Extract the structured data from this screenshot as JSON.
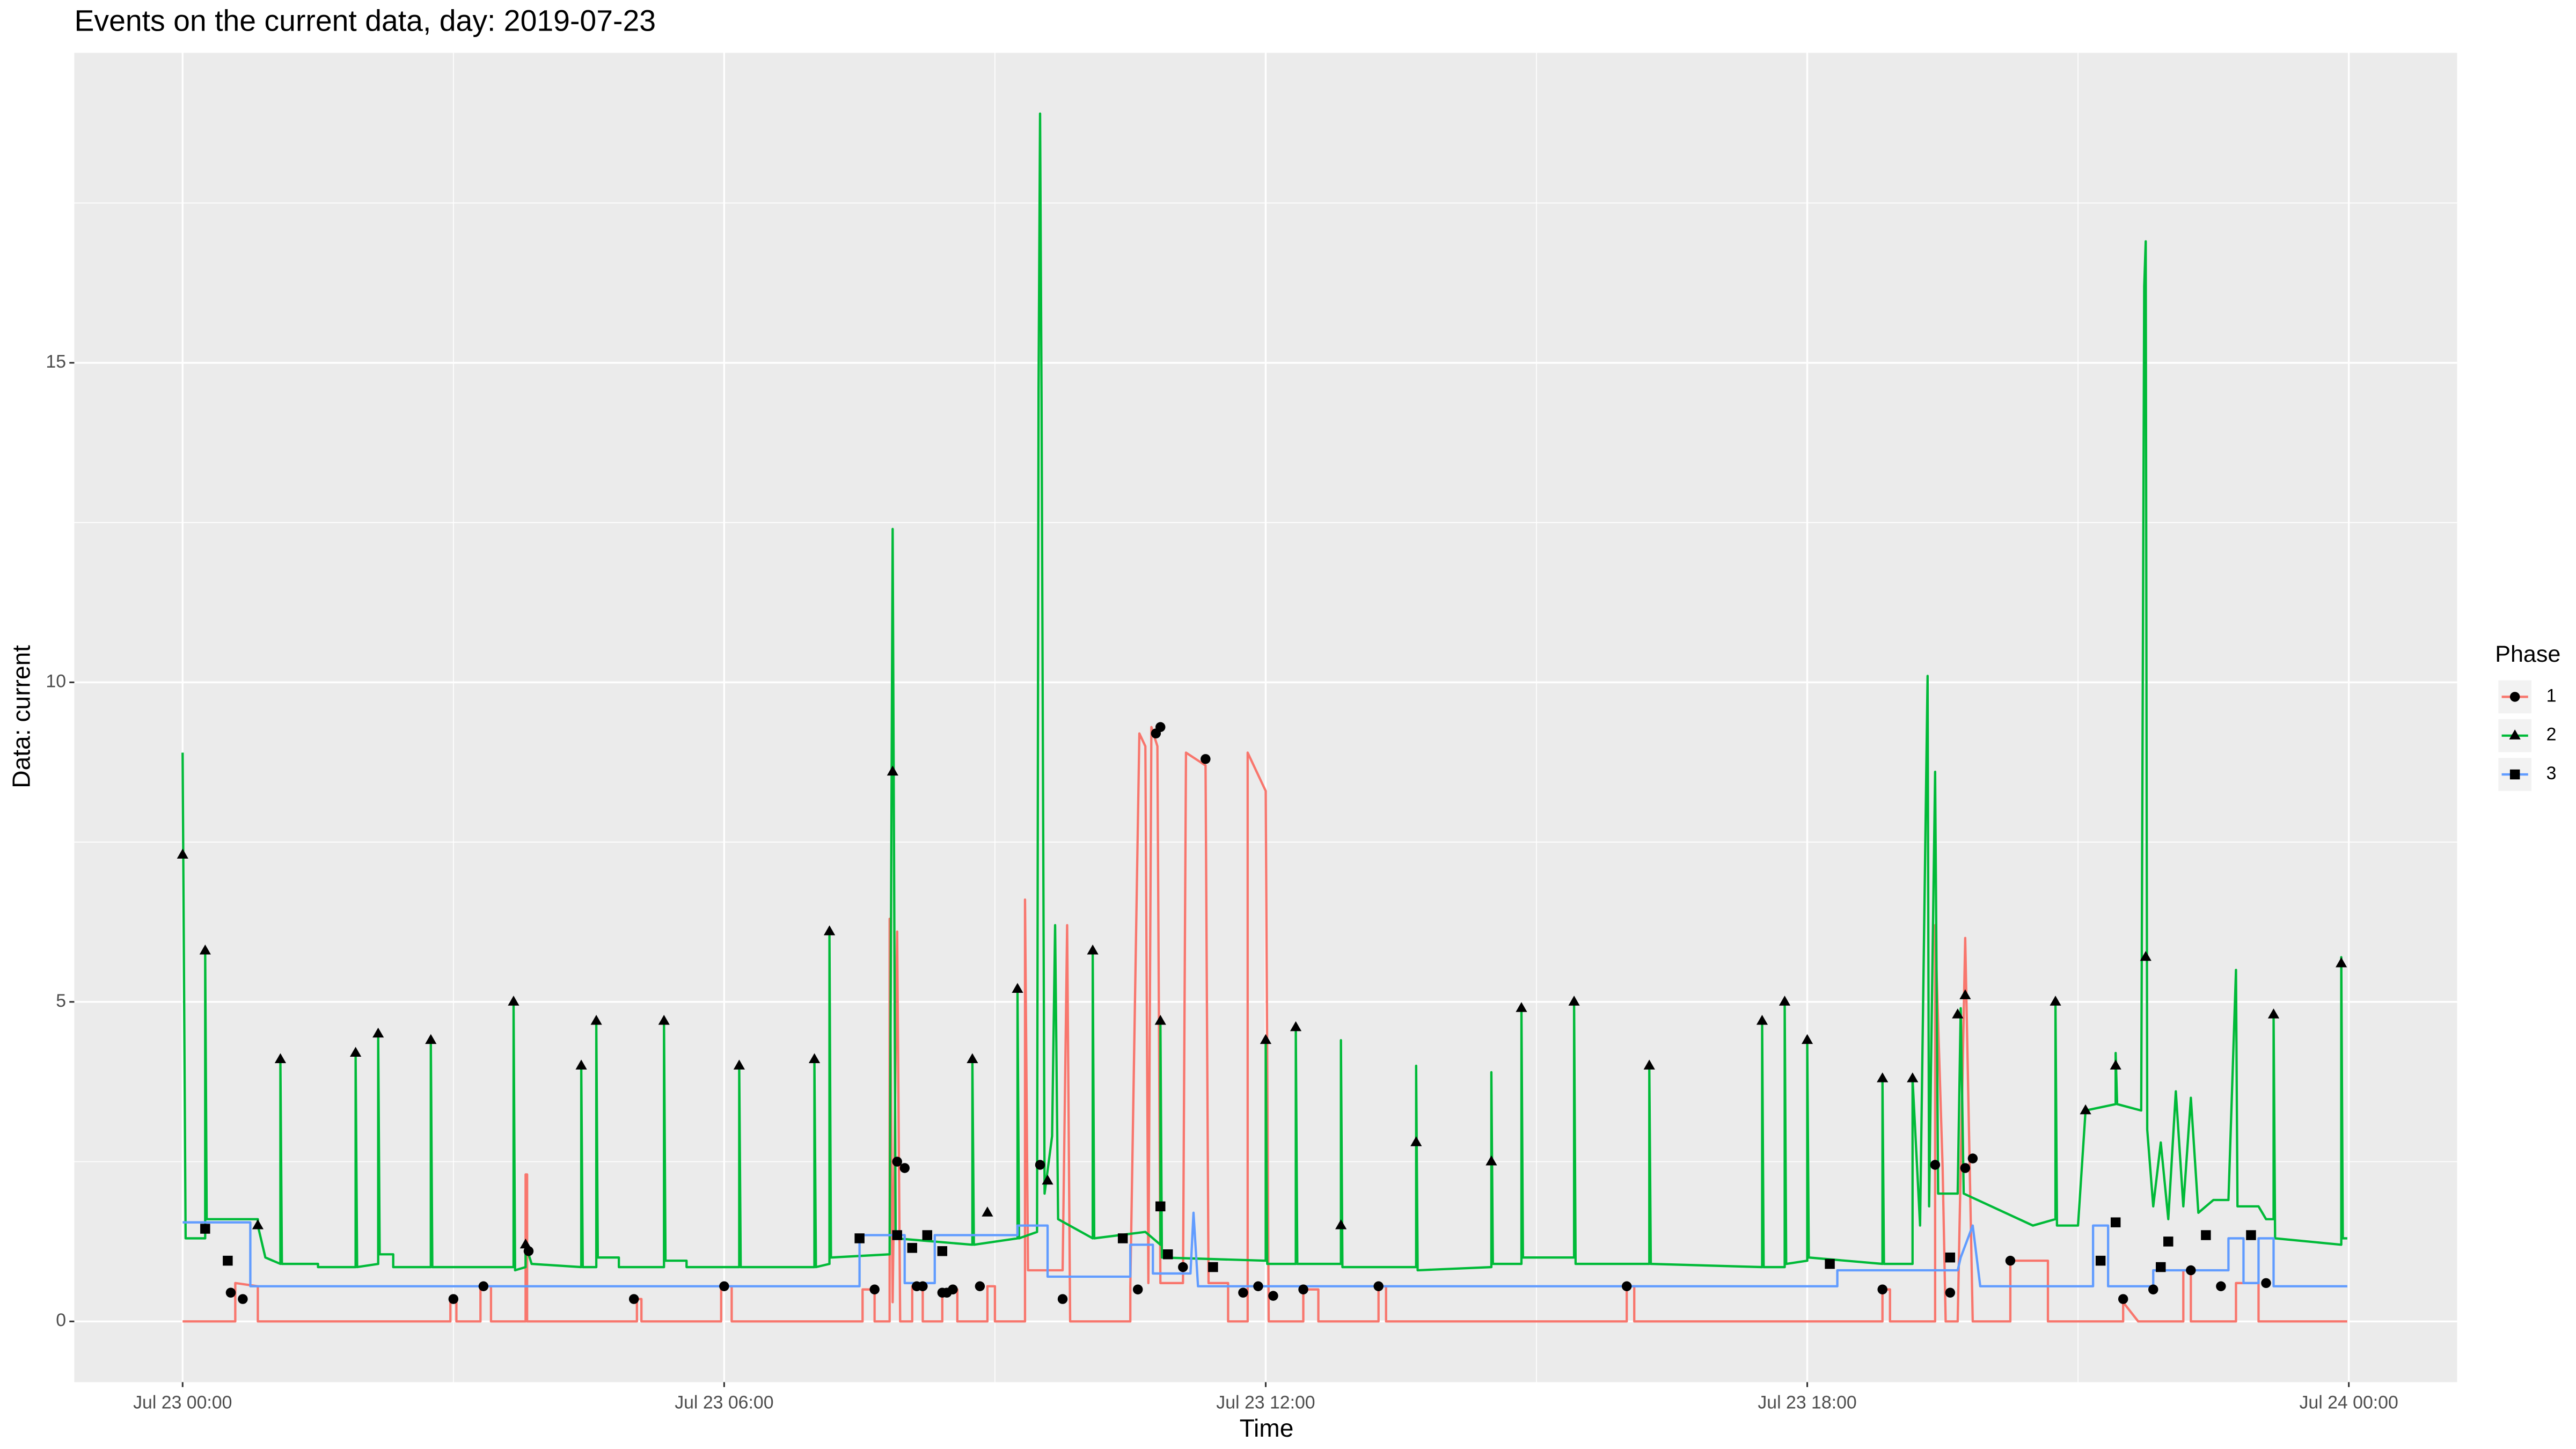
{
  "chart_data": {
    "type": "line",
    "title": "Events on the current data, day: 2019-07-23",
    "x_label": "Time",
    "y_label": "Data: current",
    "legend_title": "Phase",
    "xlim": [
      "Jul 22 22:48",
      "Jul 24 01:12"
    ],
    "xticks": [
      "Jul 23 00:00",
      "Jul 23 06:00",
      "Jul 23 12:00",
      "Jul 23 18:00",
      "Jul 24 00:00"
    ],
    "x_minor_grid": [
      "Jul 23 03:00",
      "Jul 23 09:00",
      "Jul 23 15:00",
      "Jul 23 21:00"
    ],
    "ylim": [
      -0.95,
      19.85
    ],
    "yticks": [
      0,
      5,
      10,
      15
    ],
    "y_minor_grid": [
      2.5,
      7.5,
      12.5,
      17.5
    ],
    "grid": true,
    "legend": "right",
    "series": [
      {
        "name": "1",
        "color": "#F8766D",
        "shape": "circle",
        "x": [
          "Jul 23 00:00",
          "Jul 23 00:35",
          "Jul 23 00:35",
          "Jul 23 00:50",
          "Jul 23 00:50",
          "Jul 23 02:58",
          "Jul 23 02:58",
          "Jul 23 03:02",
          "Jul 23 03:02",
          "Jul 23 03:18",
          "Jul 23 03:18",
          "Jul 23 03:25",
          "Jul 23 03:25",
          "Jul 23 03:48",
          "Jul 23 03:48",
          "Jul 23 03:49",
          "Jul 23 03:49",
          "Jul 23 05:02",
          "Jul 23 05:02",
          "Jul 23 05:05",
          "Jul 23 05:05",
          "Jul 23 05:58",
          "Jul 23 05:58",
          "Jul 23 06:05",
          "Jul 23 06:05",
          "Jul 23 07:32",
          "Jul 23 07:32",
          "Jul 23 07:40",
          "Jul 23 07:40",
          "Jul 23 07:50",
          "Jul 23 07:50",
          "Jul 23 07:52",
          "Jul 23 07:55",
          "Jul 23 07:57",
          "Jul 23 08:05",
          "Jul 23 08:05",
          "Jul 23 08:12",
          "Jul 23 08:12",
          "Jul 23 08:25",
          "Jul 23 08:25",
          "Jul 23 08:35",
          "Jul 23 08:35",
          "Jul 23 08:55",
          "Jul 23 08:55",
          "Jul 23 09:00",
          "Jul 23 09:00",
          "Jul 23 09:20",
          "Jul 23 09:20",
          "Jul 23 09:22",
          "Jul 23 09:45",
          "Jul 23 09:48",
          "Jul 23 09:50",
          "Jul 23 10:30",
          "Jul 23 10:30",
          "Jul 23 10:36",
          "Jul 23 10:40",
          "Jul 23 10:42",
          "Jul 23 10:44",
          "Jul 23 10:48",
          "Jul 23 10:50",
          "Jul 23 11:05",
          "Jul 23 11:07",
          "Jul 23 11:20",
          "Jul 23 11:22",
          "Jul 23 11:35",
          "Jul 23 11:35",
          "Jul 23 11:48",
          "Jul 23 11:48",
          "Jul 23 12:00",
          "Jul 23 12:02",
          "Jul 23 12:25",
          "Jul 23 12:25",
          "Jul 23 12:35",
          "Jul 23 12:35",
          "Jul 23 13:15",
          "Jul 23 13:15",
          "Jul 23 13:20",
          "Jul 23 13:20",
          "Jul 23 16:00",
          "Jul 23 16:00",
          "Jul 23 16:05",
          "Jul 23 16:05",
          "Jul 23 18:50",
          "Jul 23 18:50",
          "Jul 23 18:55",
          "Jul 23 18:55",
          "Jul 23 19:25",
          "Jul 23 19:25",
          "Jul 23 19:30",
          "Jul 23 19:32",
          "Jul 23 19:40",
          "Jul 23 19:45",
          "Jul 23 19:50",
          "Jul 23 20:15",
          "Jul 23 20:15",
          "Jul 23 20:40",
          "Jul 23 20:40",
          "Jul 23 21:30",
          "Jul 23 21:30",
          "Jul 23 21:40",
          "Jul 23 22:10",
          "Jul 23 22:10",
          "Jul 23 22:15",
          "Jul 23 22:15",
          "Jul 23 22:45",
          "Jul 23 22:45",
          "Jul 23 23:00",
          "Jul 23 23:00",
          "Jul 23 23:59"
        ],
        "values": [
          0,
          0,
          0.6,
          0.55,
          0,
          0,
          0.35,
          0.35,
          0,
          0,
          0.55,
          0.55,
          0,
          0,
          2.3,
          2.3,
          0,
          0,
          0.35,
          0.35,
          0,
          0,
          0.55,
          0.55,
          0,
          0,
          0.5,
          0.5,
          0,
          0,
          6.3,
          0.3,
          6.1,
          0,
          0,
          0.55,
          0.55,
          0,
          0,
          0.5,
          0.5,
          0,
          0,
          0.55,
          0.55,
          0,
          0,
          6.6,
          0.8,
          0.8,
          6.2,
          0,
          0,
          0.55,
          9.2,
          9.0,
          0.6,
          9.3,
          9.0,
          0.6,
          0.6,
          8.9,
          8.7,
          0.6,
          0.6,
          0,
          0,
          8.9,
          8.3,
          0,
          0,
          0.5,
          0.5,
          0,
          0,
          0.55,
          0.55,
          0,
          0,
          0.55,
          0.55,
          0,
          0,
          0.5,
          0.5,
          0,
          0,
          6.2,
          2.4,
          0,
          0,
          6.0,
          0,
          0,
          0.95,
          0.95,
          0,
          0,
          0.3,
          0,
          0,
          0.8,
          0.8,
          0,
          0,
          0.6,
          0.6,
          0,
          0
        ],
        "events": {
          "x": [
            "Jul 23 00:32",
            "Jul 23 00:40",
            "Jul 23 03:00",
            "Jul 23 03:20",
            "Jul 23 03:50",
            "Jul 23 05:00",
            "Jul 23 06:00",
            "Jul 23 07:40",
            "Jul 23 07:55",
            "Jul 23 08:00",
            "Jul 23 08:08",
            "Jul 23 08:12",
            "Jul 23 08:25",
            "Jul 23 08:28",
            "Jul 23 08:32",
            "Jul 23 08:50",
            "Jul 23 09:30",
            "Jul 23 09:45",
            "Jul 23 10:35",
            "Jul 23 10:47",
            "Jul 23 10:50",
            "Jul 23 11:05",
            "Jul 23 11:20",
            "Jul 23 11:45",
            "Jul 23 11:55",
            "Jul 23 12:05",
            "Jul 23 12:25",
            "Jul 23 13:15",
            "Jul 23 16:00",
            "Jul 23 18:50",
            "Jul 23 19:25",
            "Jul 23 19:35",
            "Jul 23 19:45",
            "Jul 23 19:50",
            "Jul 23 20:15",
            "Jul 23 21:30",
            "Jul 23 21:50",
            "Jul 23 22:15",
            "Jul 23 22:35",
            "Jul 23 23:05"
          ],
          "values": [
            0.45,
            0.35,
            0.35,
            0.55,
            1.1,
            0.35,
            0.55,
            0.5,
            2.5,
            2.4,
            0.55,
            0.55,
            0.45,
            0.45,
            0.5,
            0.55,
            2.45,
            0.35,
            0.5,
            9.2,
            9.3,
            0.85,
            8.8,
            0.45,
            0.55,
            0.4,
            0.5,
            0.55,
            0.55,
            0.5,
            2.45,
            0.45,
            2.4,
            2.55,
            0.95,
            0.35,
            0.5,
            0.8,
            0.55,
            0.6
          ]
        }
      },
      {
        "name": "2",
        "color": "#00BA38",
        "shape": "triangle",
        "x": [
          "Jul 23 00:00",
          "Jul 23 00:02",
          "Jul 23 00:15",
          "Jul 23 00:15",
          "Jul 23 00:16",
          "Jul 23 00:50",
          "Jul 23 00:50",
          "Jul 23 00:55",
          "Jul 23 01:05",
          "Jul 23 01:05",
          "Jul 23 01:06",
          "Jul 23 01:30",
          "Jul 23 01:30",
          "Jul 23 01:55",
          "Jul 23 01:55",
          "Jul 23 01:56",
          "Jul 23 02:10",
          "Jul 23 02:10",
          "Jul 23 02:11",
          "Jul 23 02:20",
          "Jul 23 02:20",
          "Jul 23 02:45",
          "Jul 23 02:45",
          "Jul 23 02:46",
          "Jul 23 03:40",
          "Jul 23 03:40",
          "Jul 23 03:41",
          "Jul 23 03:48",
          "Jul 23 03:48",
          "Jul 23 03:52",
          "Jul 23 04:25",
          "Jul 23 04:25",
          "Jul 23 04:26",
          "Jul 23 04:35",
          "Jul 23 04:35",
          "Jul 23 04:36",
          "Jul 23 04:50",
          "Jul 23 04:50",
          "Jul 23 05:20",
          "Jul 23 05:20",
          "Jul 23 05:21",
          "Jul 23 05:35",
          "Jul 23 05:35",
          "Jul 23 06:10",
          "Jul 23 06:10",
          "Jul 23 06:11",
          "Jul 23 07:00",
          "Jul 23 07:00",
          "Jul 23 07:01",
          "Jul 23 07:10",
          "Jul 23 07:10",
          "Jul 23 07:11",
          "Jul 23 07:50",
          "Jul 23 07:52",
          "Jul 23 07:54",
          "Jul 23 08:45",
          "Jul 23 08:45",
          "Jul 23 08:46",
          "Jul 23 09:15",
          "Jul 23 09:15",
          "Jul 23 09:16",
          "Jul 23 09:28",
          "Jul 23 09:29",
          "Jul 23 09:30",
          "Jul 23 09:31",
          "Jul 23 09:33",
          "Jul 23 09:38",
          "Jul 23 09:40",
          "Jul 23 09:42",
          "Jul 23 10:05",
          "Jul 23 10:05",
          "Jul 23 10:06",
          "Jul 23 10:40",
          "Jul 23 10:50",
          "Jul 23 10:50",
          "Jul 23 10:51",
          "Jul 23 12:00",
          "Jul 23 12:00",
          "Jul 23 12:01",
          "Jul 23 12:20",
          "Jul 23 12:20",
          "Jul 23 12:21",
          "Jul 23 12:50",
          "Jul 23 12:50",
          "Jul 23 12:51",
          "Jul 23 13:40",
          "Jul 23 13:40",
          "Jul 23 13:41",
          "Jul 23 14:30",
          "Jul 23 14:30",
          "Jul 23 14:31",
          "Jul 23 14:50",
          "Jul 23 14:50",
          "Jul 23 14:51",
          "Jul 23 15:25",
          "Jul 23 15:25",
          "Jul 23 15:26",
          "Jul 23 16:15",
          "Jul 23 16:15",
          "Jul 23 16:16",
          "Jul 23 17:30",
          "Jul 23 17:30",
          "Jul 23 17:31",
          "Jul 23 17:45",
          "Jul 23 17:45",
          "Jul 23 17:46",
          "Jul 23 18:00",
          "Jul 23 18:00",
          "Jul 23 18:01",
          "Jul 23 18:50",
          "Jul 23 18:50",
          "Jul 23 18:51",
          "Jul 23 19:10",
          "Jul 23 19:10",
          "Jul 23 19:15",
          "Jul 23 19:20",
          "Jul 23 19:21",
          "Jul 23 19:25",
          "Jul 23 19:27",
          "Jul 23 19:40",
          "Jul 23 19:42",
          "Jul 23 19:44",
          "Jul 23 20:30",
          "Jul 23 20:45",
          "Jul 23 20:45",
          "Jul 23 20:46",
          "Jul 23 21:00",
          "Jul 23 21:05",
          "Jul 23 21:25",
          "Jul 23 21:25",
          "Jul 23 21:26",
          "Jul 23 21:42",
          "Jul 23 21:44",
          "Jul 23 21:45",
          "Jul 23 21:46",
          "Jul 23 21:50",
          "Jul 23 21:55",
          "Jul 23 22:00",
          "Jul 23 22:05",
          "Jul 23 22:10",
          "Jul 23 22:15",
          "Jul 23 22:20",
          "Jul 23 22:30",
          "Jul 23 22:40",
          "Jul 23 22:45",
          "Jul 23 22:46",
          "Jul 23 23:00",
          "Jul 23 23:05",
          "Jul 23 23:10",
          "Jul 23 23:10",
          "Jul 23 23:11",
          "Jul 23 23:55",
          "Jul 23 23:55",
          "Jul 23 23:56",
          "Jul 23 23:59"
        ],
        "values": [
          8.9,
          1.3,
          1.3,
          5.8,
          1.6,
          1.6,
          1.5,
          1.0,
          0.9,
          4.1,
          0.9,
          0.9,
          0.85,
          0.85,
          4.2,
          0.85,
          0.9,
          4.5,
          1.05,
          1.05,
          0.85,
          0.85,
          4.4,
          0.85,
          0.85,
          5.0,
          0.8,
          0.85,
          1.2,
          0.9,
          0.85,
          4.0,
          0.85,
          0.85,
          4.7,
          1.0,
          1.0,
          0.85,
          0.85,
          4.7,
          0.95,
          0.95,
          0.85,
          0.85,
          4.0,
          0.85,
          0.85,
          4.1,
          0.85,
          0.9,
          6.1,
          1.0,
          1.05,
          12.4,
          1.3,
          1.2,
          4.1,
          1.2,
          1.3,
          5.2,
          1.3,
          1.4,
          14.6,
          18.9,
          14.4,
          2.0,
          2.9,
          6.2,
          1.6,
          1.3,
          5.8,
          1.3,
          1.4,
          1.2,
          4.7,
          1.0,
          0.95,
          4.4,
          0.9,
          0.9,
          4.6,
          0.9,
          0.9,
          4.4,
          0.85,
          0.85,
          4.0,
          0.8,
          0.85,
          3.9,
          0.9,
          0.9,
          4.9,
          1.0,
          1.0,
          5.0,
          0.9,
          0.9,
          4.0,
          0.9,
          0.85,
          4.7,
          0.85,
          0.85,
          5.0,
          0.9,
          0.95,
          4.4,
          1.0,
          0.9,
          3.8,
          0.9,
          0.9,
          3.8,
          1.5,
          10.1,
          1.8,
          8.6,
          2.0,
          2.0,
          4.9,
          2.0,
          1.5,
          1.6,
          5.0,
          1.5,
          1.5,
          3.3,
          3.4,
          4.2,
          3.4,
          3.3,
          16.2,
          16.9,
          3.0,
          1.8,
          2.8,
          1.6,
          3.6,
          1.8,
          3.5,
          1.7,
          1.9,
          1.9,
          5.5,
          1.8,
          1.8,
          1.6,
          1.6,
          4.8,
          1.3,
          1.2,
          5.7,
          1.3,
          1.3
        ],
        "events": {
          "x": [
            "Jul 23 00:00",
            "Jul 23 00:15",
            "Jul 23 00:50",
            "Jul 23 01:05",
            "Jul 23 01:55",
            "Jul 23 02:10",
            "Jul 23 02:45",
            "Jul 23 03:40",
            "Jul 23 03:48",
            "Jul 23 04:25",
            "Jul 23 04:35",
            "Jul 23 05:20",
            "Jul 23 06:10",
            "Jul 23 07:00",
            "Jul 23 07:10",
            "Jul 23 07:52",
            "Jul 23 08:45",
            "Jul 23 08:55",
            "Jul 23 09:15",
            "Jul 23 09:35",
            "Jul 23 10:05",
            "Jul 23 10:50",
            "Jul 23 12:00",
            "Jul 23 12:20",
            "Jul 23 12:50",
            "Jul 23 13:40",
            "Jul 23 14:30",
            "Jul 23 14:50",
            "Jul 23 15:25",
            "Jul 23 16:15",
            "Jul 23 17:30",
            "Jul 23 17:45",
            "Jul 23 18:00",
            "Jul 23 18:50",
            "Jul 23 19:10",
            "Jul 23 19:40",
            "Jul 23 19:45",
            "Jul 23 20:45",
            "Jul 23 21:05",
            "Jul 23 21:25",
            "Jul 23 21:45",
            "Jul 23 23:10",
            "Jul 23 23:55"
          ],
          "values": [
            7.3,
            5.8,
            1.5,
            4.1,
            4.2,
            4.5,
            4.4,
            5.0,
            1.2,
            4.0,
            4.7,
            4.7,
            4.0,
            4.1,
            6.1,
            8.6,
            4.1,
            1.7,
            5.2,
            2.2,
            5.8,
            4.7,
            4.4,
            4.6,
            1.5,
            2.8,
            2.5,
            4.9,
            5.0,
            4.0,
            4.7,
            5.0,
            4.4,
            3.8,
            3.8,
            4.8,
            5.1,
            5.0,
            3.3,
            4.0,
            5.7,
            4.8,
            5.6
          ]
        }
      },
      {
        "name": "3",
        "color": "#619CFF",
        "shape": "square",
        "x": [
          "Jul 23 00:00",
          "Jul 23 00:45",
          "Jul 23 00:45",
          "Jul 23 07:30",
          "Jul 23 07:30",
          "Jul 23 08:00",
          "Jul 23 08:00",
          "Jul 23 08:20",
          "Jul 23 08:20",
          "Jul 23 09:15",
          "Jul 23 09:15",
          "Jul 23 09:35",
          "Jul 23 09:35",
          "Jul 23 10:30",
          "Jul 23 10:30",
          "Jul 23 10:45",
          "Jul 23 10:45",
          "Jul 23 11:10",
          "Jul 23 11:12",
          "Jul 23 11:15",
          "Jul 23 18:20",
          "Jul 23 18:20",
          "Jul 23 19:40",
          "Jul 23 19:42",
          "Jul 23 19:50",
          "Jul 23 19:55",
          "Jul 23 21:10",
          "Jul 23 21:10",
          "Jul 23 21:20",
          "Jul 23 21:20",
          "Jul 23 21:50",
          "Jul 23 21:50",
          "Jul 23 22:40",
          "Jul 23 22:40",
          "Jul 23 22:50",
          "Jul 23 22:50",
          "Jul 23 23:00",
          "Jul 23 23:00",
          "Jul 23 23:10",
          "Jul 23 23:10",
          "Jul 23 23:59"
        ],
        "values": [
          1.55,
          1.55,
          0.55,
          0.55,
          1.35,
          1.35,
          0.6,
          0.6,
          1.35,
          1.35,
          1.5,
          1.5,
          0.7,
          0.7,
          1.2,
          1.2,
          0.75,
          0.75,
          1.7,
          0.55,
          0.55,
          0.8,
          0.8,
          1.0,
          1.5,
          0.55,
          0.55,
          1.5,
          1.5,
          0.55,
          0.55,
          0.8,
          0.8,
          1.3,
          1.3,
          0.6,
          0.6,
          1.3,
          1.3,
          0.55,
          0.55
        ],
        "events": {
          "x": [
            "Jul 23 00:15",
            "Jul 23 00:30",
            "Jul 23 07:30",
            "Jul 23 07:55",
            "Jul 23 08:05",
            "Jul 23 08:15",
            "Jul 23 08:25",
            "Jul 23 10:25",
            "Jul 23 10:50",
            "Jul 23 10:55",
            "Jul 23 11:25",
            "Jul 23 18:15",
            "Jul 23 19:35",
            "Jul 23 21:15",
            "Jul 23 21:25",
            "Jul 23 21:55",
            "Jul 23 22:00",
            "Jul 23 22:25",
            "Jul 23 22:55"
          ],
          "values": [
            1.45,
            0.95,
            1.3,
            1.35,
            1.15,
            1.35,
            1.1,
            1.3,
            1.8,
            1.05,
            0.85,
            0.9,
            1.0,
            0.95,
            1.55,
            0.85,
            1.25,
            1.35,
            1.35
          ]
        }
      }
    ]
  }
}
